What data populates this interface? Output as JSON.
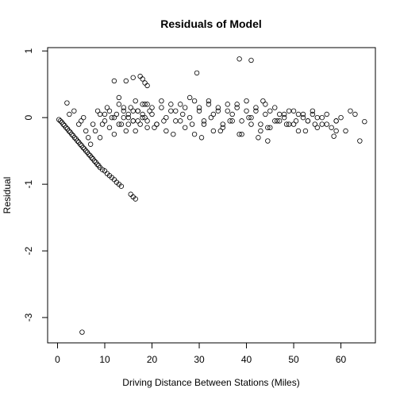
{
  "chart_data": {
    "type": "scatter",
    "title": "Residuals of Model",
    "xlabel": "Driving Distance Between Stations (Miles)",
    "ylabel": "Residual",
    "xlim": [
      -2.1,
      67.3
    ],
    "ylim": [
      -3.38,
      1.05
    ],
    "xticks": [
      0,
      10,
      20,
      30,
      40,
      50,
      60
    ],
    "yticks": [
      1,
      0,
      -1,
      -2,
      -3
    ],
    "xtick_labels": [
      "0",
      "10",
      "20",
      "30",
      "40",
      "50",
      "60"
    ],
    "ytick_labels": [
      "1",
      "0",
      "-1",
      "-2",
      "-3"
    ],
    "grid": false,
    "marker": "open-circle",
    "series": [
      {
        "x": [
          0.3,
          0.6,
          0.9,
          1.2,
          1.5,
          1.8,
          2.1,
          2.4,
          2.7,
          3.0,
          3.3,
          3.6,
          3.9,
          4.2,
          4.5,
          4.8,
          5.1,
          5.4,
          5.7,
          6.0,
          6.3,
          6.6,
          6.9,
          7.2,
          7.5,
          7.8,
          8.1,
          8.4,
          8.7,
          9.0,
          9.5,
          10.0,
          10.5,
          11.0,
          11.5,
          12.0,
          12.5,
          13.0,
          13.5,
          15.5,
          16.0,
          16.5,
          2.0,
          2.5,
          3.5,
          4.5,
          5.0,
          5.5,
          6.0,
          6.5,
          7.0,
          7.5,
          8.0,
          8.5,
          9.0,
          9.5,
          10.0,
          10.5,
          11.0,
          11.5,
          12.0,
          12.5,
          13.0,
          13.5,
          14.0,
          14.5,
          15.0,
          15.5,
          16.0,
          16.5,
          17.0,
          17.5,
          18.0,
          18.5,
          19.0,
          19.5,
          9.0,
          10.0,
          11.0,
          12.0,
          13.0,
          14.0,
          15.0,
          16.0,
          17.0,
          18.0,
          19.0,
          20.0,
          21.0,
          22.0,
          23.0,
          24.0,
          25.0,
          26.0,
          27.0,
          28.0,
          29.0,
          30.0,
          31.0,
          32.0,
          33.0,
          34.0,
          35.0,
          36.0,
          37.0,
          38.0,
          39.0,
          40.0,
          41.0,
          42.0,
          43.0,
          44.0,
          45.0,
          46.0,
          47.0,
          48.0,
          49.0,
          50.0,
          51.0,
          52.0,
          53.0,
          54.0,
          55.0,
          56.0,
          57.0,
          58.0,
          59.0,
          60.0,
          61.0,
          62.0,
          63.0,
          15.0,
          17.0,
          19.0,
          21.0,
          23.0,
          25.0,
          27.0,
          29.0,
          31.0,
          33.0,
          35.0,
          37.0,
          39.0,
          41.0,
          43.0,
          45.0,
          47.0,
          49.0,
          51.0,
          53.0,
          55.0,
          57.0,
          59.0,
          16.0,
          18.0,
          20.0,
          22.0,
          24.0,
          26.0,
          28.0,
          30.0,
          32.0,
          34.0,
          36.0,
          38.0,
          40.0,
          42.0,
          44.0,
          46.0,
          48.0,
          50.0,
          52.0,
          54.0,
          56.0,
          14.0,
          16.5,
          18.5,
          20.5,
          22.5,
          24.5,
          26.5,
          28.5,
          30.5,
          32.5,
          34.5,
          36.5,
          38.5,
          40.5,
          42.5,
          44.5,
          46.5,
          48.5,
          50.5,
          52.5,
          54.5,
          12.0,
          13.0,
          14.5,
          16.0,
          17.5,
          18.0,
          18.5,
          19.0,
          29.5,
          38.5,
          41.0,
          5.2,
          64.0,
          65.0,
          58.5,
          59.0,
          43.5,
          44.5
        ],
        "y": [
          -0.03,
          -0.05,
          -0.07,
          -0.1,
          -0.12,
          -0.15,
          -0.17,
          -0.2,
          -0.22,
          -0.25,
          -0.27,
          -0.3,
          -0.32,
          -0.35,
          -0.37,
          -0.4,
          -0.42,
          -0.45,
          -0.47,
          -0.5,
          -0.52,
          -0.55,
          -0.57,
          -0.6,
          -0.62,
          -0.65,
          -0.67,
          -0.7,
          -0.72,
          -0.75,
          -0.78,
          -0.8,
          -0.84,
          -0.87,
          -0.9,
          -0.93,
          -0.97,
          -1.0,
          -1.03,
          -1.15,
          -1.19,
          -1.22,
          0.22,
          0.05,
          0.1,
          -0.1,
          -0.05,
          0.0,
          -0.2,
          -0.3,
          -0.4,
          -0.1,
          -0.2,
          0.1,
          -0.3,
          -0.1,
          0.05,
          0.15,
          -0.15,
          0.0,
          -0.25,
          0.05,
          0.2,
          -0.1,
          0.1,
          -0.2,
          0.0,
          0.15,
          -0.05,
          0.25,
          0.1,
          -0.1,
          0.05,
          0.2,
          -0.05,
          0.1,
          0.05,
          -0.05,
          0.1,
          0.0,
          -0.1,
          0.15,
          0.05,
          -0.05,
          0.1,
          0.0,
          0.2,
          0.05,
          -0.1,
          0.15,
          0.0,
          0.2,
          0.1,
          -0.05,
          0.15,
          0.0,
          0.25,
          0.1,
          -0.05,
          0.2,
          0.05,
          0.15,
          -0.1,
          0.1,
          0.05,
          0.2,
          -0.05,
          0.1,
          0.0,
          0.15,
          -0.1,
          0.05,
          0.1,
          -0.05,
          0.05,
          0.0,
          0.1,
          -0.1,
          0.05,
          0.0,
          -0.05,
          0.05,
          0.0,
          -0.1,
          0.05,
          -0.15,
          -0.05,
          0.0,
          -0.2,
          0.1,
          0.05,
          -0.1,
          -0.05,
          -0.15,
          -0.1,
          -0.2,
          -0.05,
          -0.15,
          -0.25,
          -0.1,
          -0.2,
          -0.15,
          -0.05,
          -0.25,
          -0.1,
          -0.2,
          -0.15,
          -0.05,
          -0.1,
          -0.2,
          -0.05,
          -0.15,
          -0.1,
          -0.05,
          0.1,
          0.2,
          0.15,
          0.25,
          0.1,
          0.2,
          0.3,
          0.15,
          0.25,
          0.1,
          0.2,
          0.15,
          0.25,
          0.1,
          0.2,
          0.15,
          0.05,
          0.1,
          0.05,
          0.1,
          0.0,
          0.0,
          -0.2,
          0.0,
          -0.15,
          -0.05,
          -0.25,
          0.05,
          -0.1,
          -0.3,
          0.0,
          -0.2,
          -0.05,
          -0.25,
          0.0,
          -0.3,
          -0.15,
          -0.05,
          -0.1,
          -0.05,
          -0.2,
          -0.1,
          0.55,
          0.3,
          0.55,
          0.6,
          0.62,
          0.58,
          0.52,
          0.48,
          0.67,
          0.88,
          0.86,
          -3.22,
          -0.35,
          -0.06,
          -0.28,
          -0.2,
          0.25,
          -0.35
        ]
      }
    ]
  }
}
